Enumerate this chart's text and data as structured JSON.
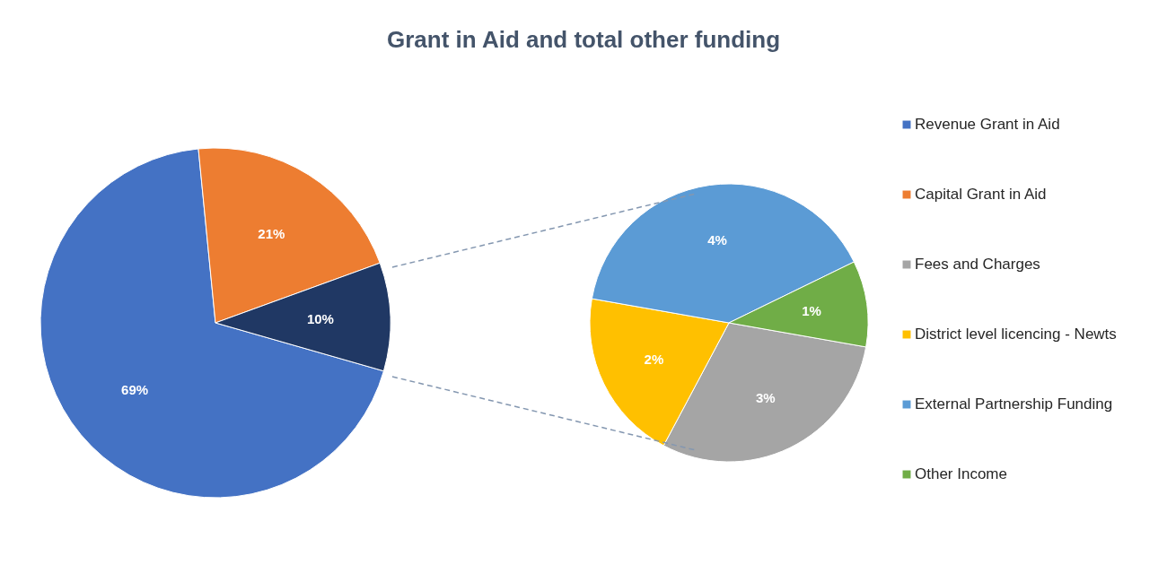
{
  "chart_data": [
    {
      "type": "pie",
      "title": "Grant in Aid and total other funding",
      "categories": [
        "Revenue Grant in Aid",
        "Capital Grant in Aid",
        null
      ],
      "values": [
        69,
        21,
        10
      ],
      "colors": [
        "#4472c4",
        "#ed7d31",
        "#203864"
      ],
      "value_labels": [
        "69%",
        "21%",
        "10%"
      ],
      "legend": "right"
    },
    {
      "type": "pie",
      "categories": [
        "Fees and Charges",
        "District level licencing - Newts",
        "External Partnership Funding",
        "Other Income"
      ],
      "values": [
        3,
        2,
        4,
        1
      ],
      "colors": [
        "#a5a5a5",
        "#ffc000",
        "#5b9bd5",
        "#70ad47"
      ],
      "value_labels": [
        "3%",
        "2%",
        "4%",
        "1%"
      ],
      "legend": "right"
    }
  ]
}
